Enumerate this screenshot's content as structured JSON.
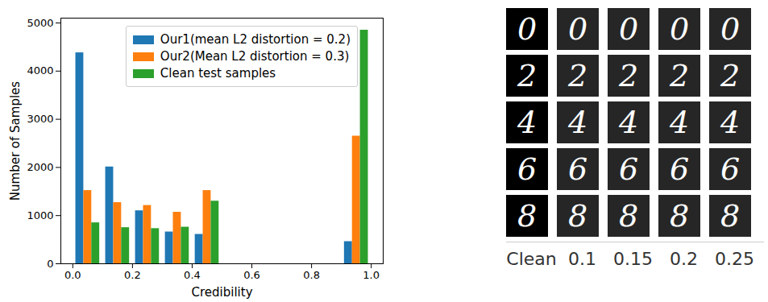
{
  "chart_data": {
    "type": "histogram",
    "x_label": "Credibility",
    "y_label": "Number of Samples",
    "bins": [
      0.0,
      0.1,
      0.2,
      0.3,
      0.4,
      0.5,
      0.6,
      0.7,
      0.8,
      0.9,
      1.0
    ],
    "series": [
      {
        "name": "Our1(mean L2 distortion = 0.2)",
        "color": "#1f77b4",
        "values": [
          4380,
          2010,
          1100,
          660,
          610,
          0,
          0,
          0,
          0,
          460
        ]
      },
      {
        "name": "Our2(Mean L2 distortion = 0.3)",
        "color": "#ff7f0e",
        "values": [
          1520,
          1270,
          1210,
          1070,
          1520,
          0,
          0,
          0,
          0,
          2650
        ]
      },
      {
        "name": "Clean test samples",
        "color": "#2ca02c",
        "values": [
          850,
          750,
          730,
          760,
          1300,
          0,
          0,
          0,
          0,
          4850
        ]
      }
    ],
    "xlim": [
      -0.04,
      1.04
    ],
    "xticks": [
      {
        "value": 0,
        "label": "0.0"
      },
      {
        "value": 0.2,
        "label": "0.2"
      },
      {
        "value": 0.4,
        "label": "0.4"
      },
      {
        "value": 0.6,
        "label": "0.6"
      },
      {
        "value": 0.8,
        "label": "0.8"
      },
      {
        "value": 1,
        "label": "1.0"
      }
    ],
    "ylim": [
      0,
      5100
    ],
    "yticks": [
      0,
      1000,
      2000,
      3000,
      4000,
      5000
    ],
    "legend": "upper right",
    "grid": false
  },
  "image_grid": {
    "rows": [
      "0",
      "2",
      "4",
      "6",
      "8"
    ],
    "columns": [
      "Clean",
      "0.1",
      "0.15",
      "0.2",
      "0.25"
    ]
  }
}
